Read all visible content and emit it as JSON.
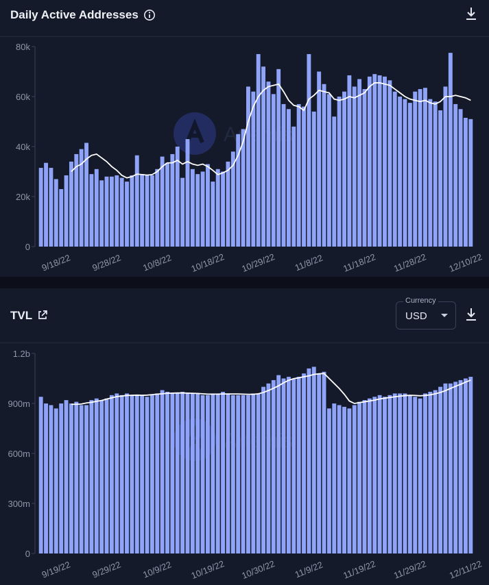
{
  "panels": {
    "daa": {
      "title": "Daily Active Addresses",
      "icons": [
        "info-icon",
        "download-icon"
      ]
    },
    "tvl": {
      "title": "TVL",
      "icons": [
        "external-link-icon",
        "download-icon"
      ],
      "currency": {
        "label": "Currency",
        "value": "USD"
      }
    }
  },
  "watermark": "Artemis",
  "colors": {
    "bar": "#8fa4f8",
    "line": "#ffffff",
    "background": "#141a29",
    "axis_text": "#8f97a8"
  },
  "chart_data": [
    {
      "type": "bar",
      "title": "Daily Active Addresses",
      "y_ticks": [
        0,
        20000,
        40000,
        60000,
        80000
      ],
      "y_tick_labels": [
        "0",
        "20k",
        "40k",
        "60k",
        "80k"
      ],
      "ylim": [
        0,
        80000
      ],
      "x_tick_labels": [
        "9/18/22",
        "9/28/22",
        "10/8/22",
        "10/18/22",
        "10/29/22",
        "11/8/22",
        "11/18/22",
        "11/28/22",
        "12/10/22"
      ],
      "x_tick_index": [
        3,
        13,
        23,
        33,
        43,
        53,
        63,
        73,
        84
      ],
      "values": [
        31500,
        33500,
        31500,
        27000,
        23000,
        28500,
        34000,
        37000,
        39000,
        41500,
        29000,
        31000,
        26500,
        28000,
        28000,
        28500,
        27500,
        26000,
        28500,
        36500,
        29000,
        28500,
        28500,
        31000,
        36000,
        33500,
        37000,
        40000,
        27500,
        43000,
        31000,
        29000,
        30000,
        33000,
        26000,
        31000,
        30000,
        34000,
        38000,
        45000,
        47000,
        64000,
        62000,
        77000,
        72000,
        66000,
        61000,
        71000,
        57000,
        55000,
        48000,
        57000,
        56000,
        77000,
        54000,
        70000,
        65000,
        61000,
        52000,
        60000,
        62000,
        68500,
        64000,
        67000,
        63000,
        68000,
        69000,
        68500,
        68000,
        66500,
        62000,
        60000,
        59000,
        57500,
        62000,
        63000,
        63500,
        59000,
        58000,
        54500,
        64000,
        77500,
        57000,
        55000,
        51500,
        51000
      ],
      "moving_average": [
        null,
        null,
        null,
        null,
        null,
        null,
        30000,
        32000,
        33000,
        35000,
        36500,
        37000,
        35500,
        34000,
        32000,
        30500,
        28500,
        27500,
        28000,
        29000,
        28800,
        28600,
        28800,
        30000,
        32000,
        33500,
        33500,
        34500,
        33000,
        34000,
        33000,
        32500,
        33000,
        32000,
        30500,
        28800,
        29500,
        30500,
        32500,
        36500,
        42000,
        50000,
        56000,
        60000,
        62500,
        64000,
        64500,
        65000,
        62000,
        58500,
        56500,
        56000,
        54500,
        59000,
        60500,
        62500,
        62000,
        61500,
        59000,
        58500,
        59000,
        60000,
        59500,
        60500,
        61500,
        64000,
        65500,
        65500,
        65000,
        64500,
        63000,
        61500,
        60000,
        59000,
        58500,
        58000,
        58500,
        57500,
        57000,
        58000,
        60000,
        60000,
        60500,
        60000,
        59500,
        58500
      ]
    },
    {
      "type": "bar",
      "title": "TVL",
      "y_ticks": [
        0,
        300000000,
        600000000,
        900000000,
        1200000000
      ],
      "y_tick_labels": [
        "0",
        "300m",
        "600m",
        "900m",
        "1.2b"
      ],
      "ylim": [
        0,
        1200000000
      ],
      "x_tick_labels": [
        "9/19/22",
        "9/29/22",
        "10/9/22",
        "10/19/22",
        "10/30/22",
        "11/9/22",
        "11/19/22",
        "11/29/22",
        "12/11/22"
      ],
      "x_tick_index": [
        3,
        13,
        23,
        33,
        43,
        53,
        63,
        73,
        84
      ],
      "values": [
        940000000,
        900000000,
        890000000,
        870000000,
        900000000,
        920000000,
        900000000,
        910000000,
        890000000,
        890000000,
        920000000,
        930000000,
        920000000,
        930000000,
        950000000,
        960000000,
        950000000,
        960000000,
        950000000,
        950000000,
        950000000,
        940000000,
        950000000,
        960000000,
        980000000,
        970000000,
        960000000,
        960000000,
        970000000,
        960000000,
        960000000,
        960000000,
        950000000,
        950000000,
        960000000,
        960000000,
        970000000,
        960000000,
        950000000,
        950000000,
        950000000,
        950000000,
        960000000,
        960000000,
        1000000000,
        1020000000,
        1040000000,
        1070000000,
        1050000000,
        1060000000,
        1050000000,
        1060000000,
        1080000000,
        1110000000,
        1120000000,
        1080000000,
        1090000000,
        870000000,
        900000000,
        890000000,
        880000000,
        870000000,
        890000000,
        910000000,
        920000000,
        930000000,
        940000000,
        950000000,
        940000000,
        950000000,
        960000000,
        960000000,
        960000000,
        950000000,
        940000000,
        930000000,
        960000000,
        970000000,
        980000000,
        1000000000,
        1020000000,
        1020000000,
        1030000000,
        1040000000,
        1050000000,
        1060000000
      ],
      "moving_average": [
        null,
        null,
        null,
        null,
        null,
        null,
        895000000,
        895000000,
        897000000,
        903000000,
        907000000,
        913000000,
        918000000,
        926000000,
        934000000,
        941000000,
        945000000,
        948000000,
        949000000,
        950000000,
        949000000,
        950000000,
        953000000,
        956000000,
        958000000,
        961000000,
        962000000,
        963000000,
        963000000,
        962000000,
        961000000,
        960000000,
        958000000,
        956000000,
        956000000,
        956000000,
        957000000,
        957000000,
        957000000,
        957000000,
        956000000,
        955000000,
        955000000,
        958000000,
        966000000,
        978000000,
        991000000,
        1006000000,
        1024000000,
        1039000000,
        1049000000,
        1054000000,
        1060000000,
        1066000000,
        1074000000,
        1078000000,
        1080000000,
        1050000000,
        1020000000,
        990000000,
        955000000,
        915000000,
        900000000,
        905000000,
        910000000,
        915000000,
        920000000,
        927000000,
        932000000,
        936000000,
        940000000,
        944000000,
        947000000,
        949000000,
        948000000,
        946000000,
        948000000,
        952000000,
        958000000,
        966000000,
        977000000,
        990000000,
        1003000000,
        1015000000,
        1028000000,
        1040000000
      ]
    }
  ]
}
